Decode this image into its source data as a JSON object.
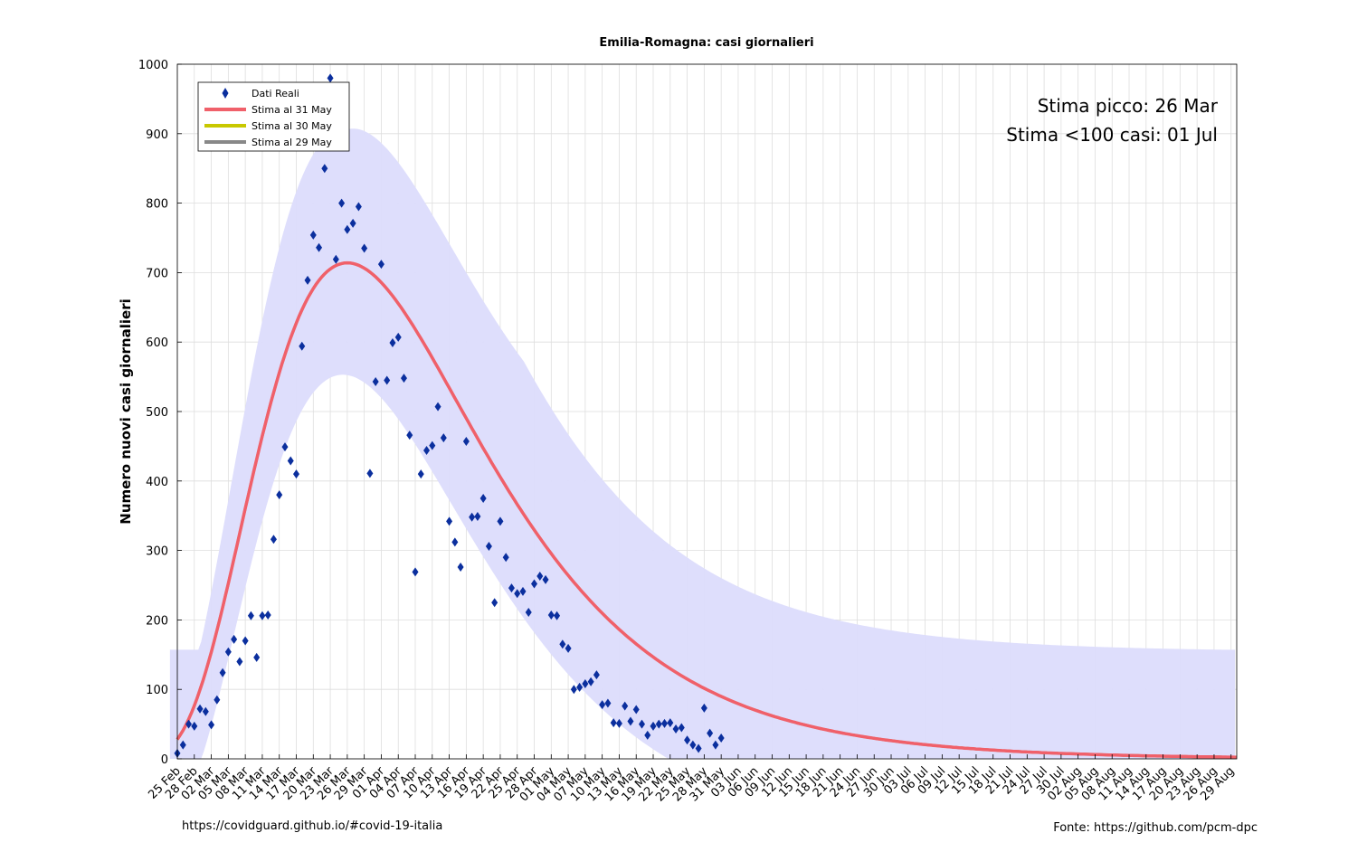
{
  "chart_data": {
    "type": "scatter",
    "title": "Emilia-Romagna: casi giornalieri",
    "xlabel": "",
    "ylabel": "Numero nuovi casi giornalieri",
    "ylim": [
      0,
      1000
    ],
    "yticks": [
      0,
      100,
      200,
      300,
      400,
      500,
      600,
      700,
      800,
      900,
      1000
    ],
    "xlim_days": [
      0,
      187
    ],
    "grid": true,
    "legend_position": "top-left",
    "xtick_labels": [
      "25 Feb",
      "28 Feb",
      "02 Mar",
      "05 Mar",
      "08 Mar",
      "11 Mar",
      "14 Mar",
      "17 Mar",
      "20 Mar",
      "23 Mar",
      "26 Mar",
      "29 Mar",
      "01 Apr",
      "04 Apr",
      "07 Apr",
      "10 Apr",
      "13 Apr",
      "16 Apr",
      "19 Apr",
      "22 Apr",
      "25 Apr",
      "28 Apr",
      "01 May",
      "04 May",
      "07 May",
      "10 May",
      "13 May",
      "16 May",
      "19 May",
      "22 May",
      "25 May",
      "28 May",
      "31 May",
      "03 Jun",
      "06 Jun",
      "09 Jun",
      "12 Jun",
      "15 Jun",
      "18 Jun",
      "21 Jun",
      "24 Jun",
      "27 Jun",
      "30 Jun",
      "03 Jul",
      "06 Jul",
      "09 Jul",
      "12 Jul",
      "15 Jul",
      "18 Jul",
      "21 Jul",
      "24 Jul",
      "27 Jul",
      "30 Jul",
      "02 Aug",
      "05 Aug",
      "08 Aug",
      "11 Aug",
      "14 Aug",
      "17 Aug",
      "20 Aug",
      "23 Aug",
      "26 Aug",
      "29 Aug"
    ],
    "series": [
      {
        "name": "Dati Reali",
        "kind": "points",
        "color": "#0b2f9e",
        "values": [
          8,
          20,
          50,
          47,
          72,
          68,
          49,
          85,
          124,
          154,
          172,
          140,
          170,
          206,
          146,
          206,
          207,
          316,
          380,
          449,
          429,
          410,
          594,
          689,
          754,
          736,
          850,
          980,
          719,
          800,
          762,
          771,
          795,
          735,
          411,
          543,
          712,
          545,
          599,
          607,
          548,
          466,
          269,
          410,
          444,
          451,
          507,
          462,
          342,
          312,
          276,
          457,
          348,
          349,
          375,
          306,
          225,
          342,
          290,
          246,
          238,
          241,
          211,
          252,
          263,
          258,
          207,
          206,
          165,
          159,
          100,
          103,
          108,
          111,
          121,
          78,
          80,
          52,
          51,
          76,
          54,
          71,
          50,
          34,
          47,
          50,
          51,
          52,
          43,
          45,
          27,
          20,
          15,
          73,
          37,
          20,
          30
        ]
      },
      {
        "name": "Stima al 31 May",
        "kind": "line",
        "color": "#f0606a",
        "peak_value": 714,
        "peak_day": 30
      },
      {
        "name": "Stima al 30 May",
        "kind": "line",
        "color": "#c8c800"
      },
      {
        "name": "Stima al 29 May",
        "kind": "line",
        "color": "#888888"
      }
    ],
    "confidence_band": {
      "color": "#dcdcfc",
      "lower_peak": 553,
      "upper_peak": 873,
      "tail_upper": 154
    },
    "annotations": [
      "Stima picco: 26 Mar",
      "Stima <100 casi: 01 Jul"
    ]
  },
  "footer": {
    "left": "https://covidguard.github.io/#covid-19-italia",
    "right": "Fonte: https://github.com/pcm-dpc"
  }
}
